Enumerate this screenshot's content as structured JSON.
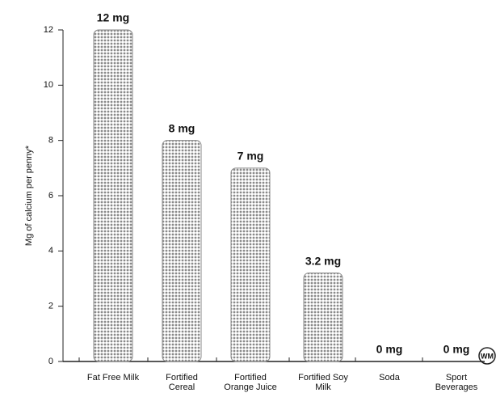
{
  "chart_data": {
    "type": "bar",
    "y_label": "Mg of calcium per penny*",
    "categories": [
      "Fat Free Milk",
      "Fortified Cereal",
      "Fortified Orange Juice",
      "Fortified Soy Milk",
      "Soda",
      "Sport Beverages"
    ],
    "values": [
      12,
      8,
      7,
      3.2,
      0,
      0
    ],
    "value_labels": [
      "12 mg",
      "8 mg",
      "7 mg",
      "3.2 mg",
      "0 mg",
      "0 mg"
    ],
    "color": "#8a8a8a",
    "ylim": [
      0,
      12
    ],
    "yticks": [
      0,
      2,
      4,
      6,
      8,
      10,
      12
    ],
    "logo": "WM"
  }
}
